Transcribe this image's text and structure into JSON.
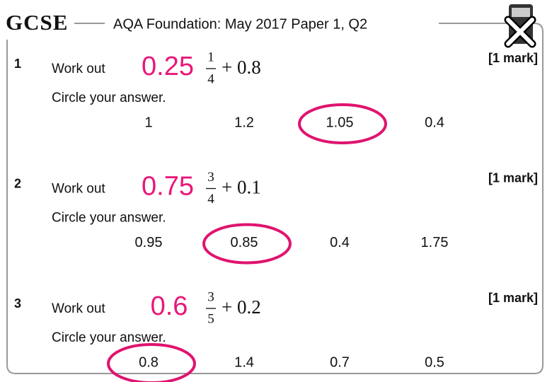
{
  "header": {
    "logo": "GCSE",
    "title": "AQA Foundation: May 2017 Paper 1, Q2"
  },
  "questions": [
    {
      "number": "1",
      "prompt": "Work out",
      "annotation": "0.25",
      "fraction": {
        "numerator": "1",
        "denominator": "4"
      },
      "expression": "+ 0.8",
      "instruction": "Circle your answer.",
      "options": [
        "1",
        "1.2",
        "1.05",
        "0.4"
      ],
      "circled": 2,
      "marks": "[1 mark]"
    },
    {
      "number": "2",
      "prompt": "Work out",
      "annotation": "0.75",
      "fraction": {
        "numerator": "3",
        "denominator": "4"
      },
      "expression": "+ 0.1",
      "instruction": "Circle your answer.",
      "options": [
        "0.95",
        "0.85",
        "0.4",
        "1.75"
      ],
      "circled": 1,
      "marks": "[1 mark]"
    },
    {
      "number": "3",
      "prompt": "Work out",
      "annotation": "0.6",
      "fraction": {
        "numerator": "3",
        "denominator": "5"
      },
      "expression": "+ 0.2",
      "instruction": "Circle your answer.",
      "options": [
        "0.8",
        "1.4",
        "0.7",
        "0.5"
      ],
      "circled": 0,
      "marks": "[1 mark]"
    }
  ]
}
